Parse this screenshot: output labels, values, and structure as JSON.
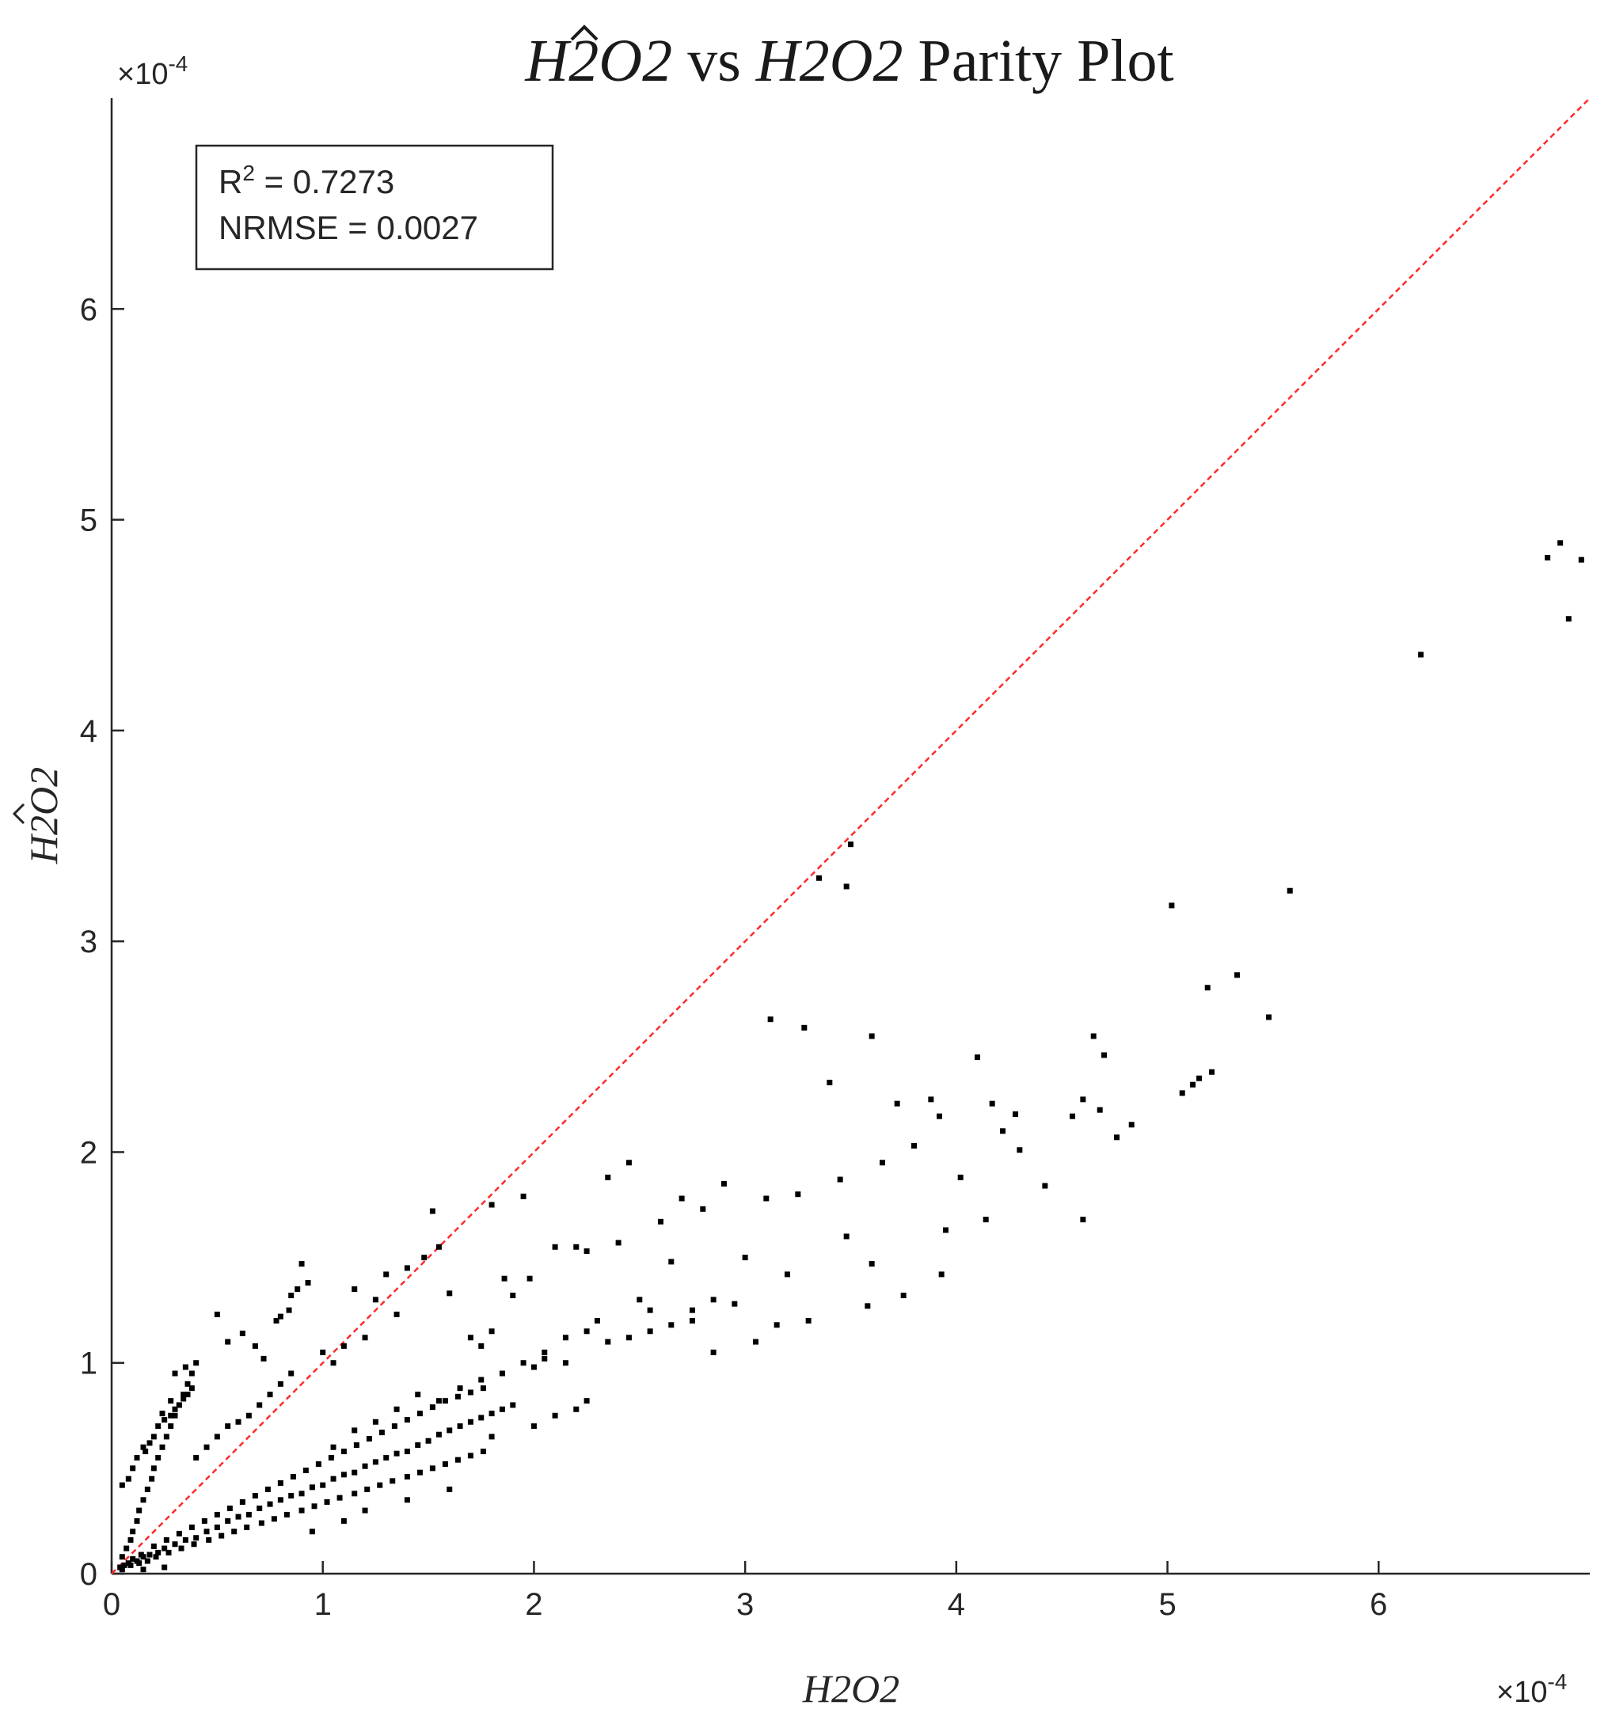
{
  "chart_data": {
    "type": "scatter",
    "title": {
      "hat_symbol": "H2O2",
      "middle": " vs ",
      "symbol": "H2O2",
      "suffix": " Parity Plot"
    },
    "xlabel": "H2O2",
    "ylabel": "H2O2",
    "ylabel_hat": true,
    "x_multiplier": {
      "base": "×10",
      "exponent": "-4"
    },
    "y_multiplier": {
      "base": "×10",
      "exponent": "-4"
    },
    "xlim": [
      0,
      7.0
    ],
    "ylim": [
      0,
      7.0
    ],
    "x_ticks": [
      0,
      1,
      2,
      3,
      4,
      5,
      6
    ],
    "y_ticks": [
      0,
      1,
      2,
      3,
      4,
      5,
      6
    ],
    "x_tick_labels": [
      "0",
      "1",
      "2",
      "3",
      "4",
      "5",
      "6"
    ],
    "y_tick_labels": [
      "0",
      "1",
      "2",
      "3",
      "4",
      "5",
      "6"
    ],
    "grid": false,
    "parity_line": {
      "from": [
        0,
        0
      ],
      "to": [
        7.0,
        7.0
      ],
      "color": "#ff2a2a",
      "style": "dashed"
    },
    "annotation": {
      "r2_label": "R",
      "r2_exponent": "2",
      "r2_value": " = 0.7273",
      "nrmse": "NRMSE = 0.0027",
      "placement": "top-left"
    },
    "marker_color": "#000000",
    "points": [
      [
        0.05,
        0.02
      ],
      [
        0.08,
        0.05
      ],
      [
        0.12,
        0.06
      ],
      [
        0.15,
        0.08
      ],
      [
        0.18,
        0.09
      ],
      [
        0.22,
        0.1
      ],
      [
        0.25,
        0.12
      ],
      [
        0.3,
        0.14
      ],
      [
        0.35,
        0.16
      ],
      [
        0.4,
        0.17
      ],
      [
        0.45,
        0.2
      ],
      [
        0.5,
        0.22
      ],
      [
        0.55,
        0.25
      ],
      [
        0.6,
        0.27
      ],
      [
        0.65,
        0.28
      ],
      [
        0.7,
        0.31
      ],
      [
        0.75,
        0.33
      ],
      [
        0.8,
        0.35
      ],
      [
        0.85,
        0.37
      ],
      [
        0.9,
        0.38
      ],
      [
        0.95,
        0.41
      ],
      [
        1.0,
        0.42
      ],
      [
        1.05,
        0.45
      ],
      [
        1.1,
        0.47
      ],
      [
        1.15,
        0.48
      ],
      [
        1.2,
        0.51
      ],
      [
        1.25,
        0.53
      ],
      [
        1.3,
        0.55
      ],
      [
        1.35,
        0.57
      ],
      [
        1.4,
        0.58
      ],
      [
        1.45,
        0.61
      ],
      [
        1.5,
        0.63
      ],
      [
        1.55,
        0.66
      ],
      [
        1.6,
        0.68
      ],
      [
        1.65,
        0.7
      ],
      [
        1.7,
        0.72
      ],
      [
        1.75,
        0.74
      ],
      [
        1.8,
        0.76
      ],
      [
        1.85,
        0.78
      ],
      [
        1.9,
        0.8
      ],
      [
        0.06,
        0.04
      ],
      [
        0.1,
        0.07
      ],
      [
        0.14,
        0.09
      ],
      [
        0.2,
        0.13
      ],
      [
        0.26,
        0.16
      ],
      [
        0.32,
        0.19
      ],
      [
        0.38,
        0.22
      ],
      [
        0.44,
        0.25
      ],
      [
        0.5,
        0.28
      ],
      [
        0.56,
        0.31
      ],
      [
        0.62,
        0.34
      ],
      [
        0.68,
        0.37
      ],
      [
        0.74,
        0.4
      ],
      [
        0.8,
        0.43
      ],
      [
        0.86,
        0.46
      ],
      [
        0.92,
        0.49
      ],
      [
        0.98,
        0.52
      ],
      [
        1.04,
        0.55
      ],
      [
        1.1,
        0.58
      ],
      [
        1.16,
        0.61
      ],
      [
        1.22,
        0.64
      ],
      [
        1.28,
        0.67
      ],
      [
        1.34,
        0.7
      ],
      [
        1.4,
        0.73
      ],
      [
        1.46,
        0.76
      ],
      [
        1.52,
        0.79
      ],
      [
        1.58,
        0.82
      ],
      [
        1.64,
        0.84
      ],
      [
        1.7,
        0.86
      ],
      [
        1.76,
        0.88
      ],
      [
        0.04,
        0.03
      ],
      [
        0.09,
        0.04
      ],
      [
        0.13,
        0.05
      ],
      [
        0.17,
        0.06
      ],
      [
        0.21,
        0.08
      ],
      [
        0.27,
        0.1
      ],
      [
        0.33,
        0.12
      ],
      [
        0.39,
        0.14
      ],
      [
        0.46,
        0.16
      ],
      [
        0.52,
        0.18
      ],
      [
        0.58,
        0.2
      ],
      [
        0.64,
        0.22
      ],
      [
        0.71,
        0.24
      ],
      [
        0.77,
        0.26
      ],
      [
        0.83,
        0.28
      ],
      [
        0.9,
        0.3
      ],
      [
        0.96,
        0.32
      ],
      [
        1.02,
        0.34
      ],
      [
        1.08,
        0.36
      ],
      [
        1.15,
        0.38
      ],
      [
        1.21,
        0.4
      ],
      [
        1.27,
        0.42
      ],
      [
        1.33,
        0.44
      ],
      [
        1.4,
        0.46
      ],
      [
        1.46,
        0.48
      ],
      [
        1.52,
        0.5
      ],
      [
        1.58,
        0.52
      ],
      [
        1.64,
        0.54
      ],
      [
        1.7,
        0.56
      ],
      [
        1.76,
        0.58
      ],
      [
        0.05,
        0.08
      ],
      [
        0.07,
        0.12
      ],
      [
        0.09,
        0.16
      ],
      [
        0.1,
        0.2
      ],
      [
        0.12,
        0.25
      ],
      [
        0.13,
        0.3
      ],
      [
        0.15,
        0.35
      ],
      [
        0.17,
        0.4
      ],
      [
        0.19,
        0.45
      ],
      [
        0.2,
        0.5
      ],
      [
        0.22,
        0.55
      ],
      [
        0.24,
        0.6
      ],
      [
        0.26,
        0.65
      ],
      [
        0.28,
        0.7
      ],
      [
        0.3,
        0.75
      ],
      [
        0.32,
        0.8
      ],
      [
        0.34,
        0.85
      ],
      [
        0.36,
        0.9
      ],
      [
        0.38,
        0.95
      ],
      [
        0.4,
        1.0
      ],
      [
        0.05,
        0.42
      ],
      [
        0.08,
        0.45
      ],
      [
        0.1,
        0.5
      ],
      [
        0.12,
        0.55
      ],
      [
        0.15,
        0.6
      ],
      [
        0.18,
        0.62
      ],
      [
        0.2,
        0.65
      ],
      [
        0.22,
        0.7
      ],
      [
        0.25,
        0.73
      ],
      [
        0.28,
        0.75
      ],
      [
        0.3,
        0.78
      ],
      [
        0.32,
        0.8
      ],
      [
        0.34,
        0.83
      ],
      [
        0.36,
        0.85
      ],
      [
        0.38,
        0.88
      ],
      [
        0.3,
        0.95
      ],
      [
        0.35,
        0.98
      ],
      [
        0.28,
        0.82
      ],
      [
        0.24,
        0.76
      ],
      [
        0.16,
        0.58
      ],
      [
        0.4,
        0.55
      ],
      [
        0.45,
        0.6
      ],
      [
        0.5,
        0.65
      ],
      [
        0.55,
        0.7
      ],
      [
        0.6,
        0.72
      ],
      [
        0.65,
        0.75
      ],
      [
        0.7,
        0.8
      ],
      [
        0.75,
        0.85
      ],
      [
        0.8,
        0.9
      ],
      [
        0.85,
        0.95
      ],
      [
        0.5,
        1.23
      ],
      [
        0.55,
        1.1
      ],
      [
        0.62,
        1.14
      ],
      [
        0.68,
        1.08
      ],
      [
        0.72,
        1.02
      ],
      [
        0.78,
        1.2
      ],
      [
        0.8,
        1.22
      ],
      [
        0.84,
        1.25
      ],
      [
        0.85,
        1.32
      ],
      [
        0.88,
        1.35
      ],
      [
        0.9,
        1.47
      ],
      [
        0.93,
        1.38
      ],
      [
        1.0,
        1.05
      ],
      [
        1.05,
        1.0
      ],
      [
        1.1,
        1.08
      ],
      [
        1.15,
        1.35
      ],
      [
        1.2,
        1.12
      ],
      [
        1.25,
        1.3
      ],
      [
        1.3,
        1.42
      ],
      [
        1.35,
        1.23
      ],
      [
        1.4,
        1.45
      ],
      [
        1.48,
        1.5
      ],
      [
        1.52,
        1.72
      ],
      [
        1.55,
        1.55
      ],
      [
        1.6,
        1.33
      ],
      [
        1.7,
        1.12
      ],
      [
        1.75,
        1.08
      ],
      [
        1.8,
        1.75
      ],
      [
        1.86,
        1.4
      ],
      [
        1.9,
        1.32
      ],
      [
        1.95,
        1.79
      ],
      [
        1.98,
        1.4
      ],
      [
        2.0,
        0.98
      ],
      [
        2.05,
        1.02
      ],
      [
        2.1,
        1.55
      ],
      [
        2.15,
        1.12
      ],
      [
        2.2,
        1.55
      ],
      [
        2.25,
        1.53
      ],
      [
        2.3,
        1.2
      ],
      [
        2.35,
        1.88
      ],
      [
        2.4,
        1.57
      ],
      [
        2.45,
        1.95
      ],
      [
        2.5,
        1.3
      ],
      [
        2.55,
        1.25
      ],
      [
        2.6,
        1.67
      ],
      [
        2.65,
        1.48
      ],
      [
        2.7,
        1.78
      ],
      [
        2.75,
        1.2
      ],
      [
        2.8,
        1.73
      ],
      [
        2.85,
        1.05
      ],
      [
        2.9,
        1.85
      ],
      [
        2.95,
        1.28
      ],
      [
        3.0,
        1.5
      ],
      [
        3.05,
        1.1
      ],
      [
        3.1,
        1.78
      ],
      [
        3.15,
        1.18
      ],
      [
        3.2,
        1.42
      ],
      [
        3.25,
        1.8
      ],
      [
        3.3,
        1.2
      ],
      [
        3.35,
        3.3
      ],
      [
        3.12,
        2.63
      ],
      [
        3.28,
        2.59
      ],
      [
        3.4,
        2.33
      ],
      [
        3.48,
        3.26
      ],
      [
        3.5,
        3.46
      ],
      [
        3.45,
        1.87
      ],
      [
        3.48,
        1.6
      ],
      [
        3.6,
        2.55
      ],
      [
        3.65,
        1.95
      ],
      [
        3.58,
        1.27
      ],
      [
        3.6,
        1.47
      ],
      [
        3.72,
        2.23
      ],
      [
        3.75,
        1.32
      ],
      [
        3.8,
        2.03
      ],
      [
        3.88,
        2.25
      ],
      [
        3.92,
        2.17
      ],
      [
        3.95,
        1.63
      ],
      [
        3.93,
        1.42
      ],
      [
        4.02,
        1.88
      ],
      [
        4.1,
        2.45
      ],
      [
        4.14,
        1.68
      ],
      [
        4.17,
        2.23
      ],
      [
        4.22,
        2.1
      ],
      [
        4.28,
        2.18
      ],
      [
        4.3,
        2.01
      ],
      [
        4.42,
        1.84
      ],
      [
        4.55,
        2.17
      ],
      [
        4.6,
        2.25
      ],
      [
        4.6,
        1.68
      ],
      [
        4.65,
        2.55
      ],
      [
        4.68,
        2.2
      ],
      [
        4.7,
        2.46
      ],
      [
        4.76,
        2.07
      ],
      [
        4.83,
        2.13
      ],
      [
        5.02,
        3.17
      ],
      [
        5.07,
        2.28
      ],
      [
        5.12,
        2.32
      ],
      [
        5.15,
        2.35
      ],
      [
        5.19,
        2.78
      ],
      [
        5.21,
        2.38
      ],
      [
        5.33,
        2.84
      ],
      [
        5.48,
        2.64
      ],
      [
        5.58,
        3.24
      ],
      [
        6.2,
        4.36
      ],
      [
        6.8,
        4.82
      ],
      [
        6.86,
        4.89
      ],
      [
        6.9,
        4.53
      ],
      [
        6.96,
        4.81
      ],
      [
        0.15,
        0.02
      ],
      [
        0.25,
        0.03
      ],
      [
        0.95,
        0.2
      ],
      [
        1.1,
        0.25
      ],
      [
        1.2,
        0.3
      ],
      [
        1.4,
        0.35
      ],
      [
        1.6,
        0.4
      ],
      [
        1.8,
        0.65
      ],
      [
        2.0,
        0.7
      ],
      [
        2.2,
        0.78
      ],
      [
        2.25,
        0.82
      ],
      [
        2.1,
        0.75
      ],
      [
        1.05,
        0.6
      ],
      [
        1.15,
        0.68
      ],
      [
        1.25,
        0.72
      ],
      [
        1.35,
        0.78
      ],
      [
        1.45,
        0.85
      ],
      [
        1.55,
        0.82
      ],
      [
        1.65,
        0.88
      ],
      [
        1.75,
        0.92
      ],
      [
        1.85,
        0.95
      ],
      [
        1.95,
        1.0
      ],
      [
        2.05,
        1.05
      ],
      [
        2.15,
        1.0
      ],
      [
        2.25,
        1.15
      ],
      [
        2.35,
        1.1
      ],
      [
        2.45,
        1.12
      ],
      [
        2.55,
        1.15
      ],
      [
        2.65,
        1.18
      ],
      [
        2.75,
        1.25
      ],
      [
        2.85,
        1.3
      ],
      [
        1.8,
        1.15
      ]
    ]
  }
}
